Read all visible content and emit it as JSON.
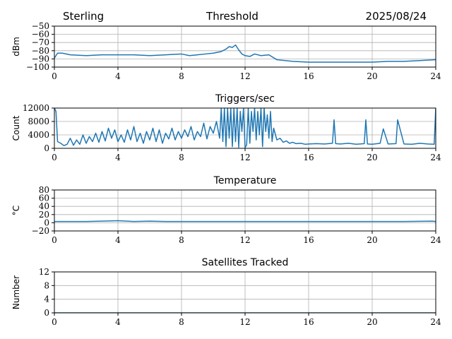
{
  "header": {
    "left": "Sterling",
    "center": "Threshold",
    "right": "2025/08/24"
  },
  "colors": {
    "line": "#1f77b4",
    "grid": "#b0b0b0",
    "axis": "#000000"
  },
  "chart_data": [
    {
      "type": "line",
      "title": "",
      "ylabel": "dBm",
      "xlabel": "",
      "xlim": [
        0,
        24
      ],
      "ylim": [
        -100,
        -50
      ],
      "xticks": [
        0,
        4,
        8,
        12,
        16,
        20,
        24
      ],
      "yticks": [
        -100,
        -90,
        -80,
        -70,
        -60,
        -50
      ],
      "ytick_labels": [
        "−100",
        "−90",
        "−80",
        "−70",
        "−60",
        "−50"
      ],
      "grid": true,
      "series": [
        {
          "x": [
            0,
            0.2,
            0.5,
            1,
            2,
            3,
            4,
            5,
            6,
            7,
            8,
            8.5,
            9,
            9.5,
            10,
            10.5,
            10.8,
            11,
            11.2,
            11.4,
            11.6,
            11.8,
            12,
            12.3,
            12.6,
            13,
            13.5,
            14,
            15,
            16,
            17,
            18,
            19,
            20,
            21,
            22,
            23,
            24
          ],
          "y": [
            -89,
            -83,
            -83,
            -85,
            -86,
            -85,
            -85,
            -85,
            -86,
            -85,
            -84,
            -86,
            -85,
            -84,
            -83,
            -81,
            -78,
            -75,
            -76,
            -73,
            -79,
            -84,
            -86,
            -87,
            -84,
            -86,
            -85,
            -91,
            -93,
            -94,
            -94,
            -94,
            -94,
            -94,
            -93,
            -93,
            -92,
            -91
          ]
        }
      ]
    },
    {
      "type": "line",
      "title": "Triggers/sec",
      "ylabel": "Count",
      "xlabel": "",
      "xlim": [
        0,
        24
      ],
      "ylim": [
        0,
        12000
      ],
      "xticks": [
        0,
        4,
        8,
        12,
        16,
        20,
        24
      ],
      "yticks": [
        0,
        4000,
        8000,
        12000
      ],
      "ytick_labels": [
        "0",
        "4000",
        "8000",
        "12000"
      ],
      "grid": true,
      "series": [
        {
          "x": [
            0,
            0.1,
            0.2,
            0.4,
            0.6,
            0.8,
            1.0,
            1.2,
            1.4,
            1.6,
            1.8,
            2.0,
            2.2,
            2.4,
            2.6,
            2.8,
            3.0,
            3.2,
            3.4,
            3.6,
            3.8,
            4.0,
            4.2,
            4.4,
            4.6,
            4.8,
            5.0,
            5.2,
            5.4,
            5.6,
            5.8,
            6.0,
            6.2,
            6.4,
            6.6,
            6.8,
            7.0,
            7.2,
            7.4,
            7.6,
            7.8,
            8.0,
            8.2,
            8.4,
            8.6,
            8.8,
            9.0,
            9.2,
            9.4,
            9.6,
            9.8,
            10.0,
            10.2,
            10.4,
            10.5,
            10.6,
            10.7,
            10.8,
            10.9,
            11.0,
            11.1,
            11.2,
            11.3,
            11.4,
            11.5,
            11.6,
            11.7,
            11.8,
            11.9,
            12.0,
            12.1,
            12.2,
            12.3,
            12.4,
            12.5,
            12.6,
            12.7,
            12.8,
            12.9,
            13.0,
            13.1,
            13.2,
            13.3,
            13.4,
            13.5,
            13.6,
            13.7,
            13.8,
            14.0,
            14.2,
            14.4,
            14.6,
            14.8,
            15.0,
            15.2,
            15.5,
            15.8,
            16.0,
            16.5,
            17.0,
            17.5,
            17.6,
            17.7,
            18.0,
            18.5,
            19.0,
            19.5,
            19.6,
            19.7,
            20.0,
            20.5,
            20.7,
            21.0,
            21.5,
            21.6,
            22.0,
            22.5,
            23.0,
            23.5,
            23.9,
            24.0
          ],
          "y": [
            12000,
            11000,
            2000,
            1500,
            800,
            1200,
            3000,
            900,
            2500,
            1200,
            4000,
            1500,
            3500,
            2000,
            4500,
            1800,
            5000,
            2200,
            6000,
            3000,
            5500,
            2000,
            4000,
            1800,
            5500,
            2500,
            6500,
            2000,
            4500,
            1500,
            5000,
            2500,
            6000,
            2000,
            5500,
            1500,
            4500,
            2800,
            6000,
            2500,
            5000,
            3000,
            5500,
            3500,
            6500,
            2500,
            5000,
            3500,
            7500,
            2800,
            6500,
            4500,
            8000,
            3000,
            12000,
            2000,
            12000,
            500,
            12000,
            3000,
            12000,
            500,
            12000,
            2000,
            12000,
            300,
            11000,
            5000,
            12000,
            200,
            1000,
            12000,
            1500,
            11000,
            5000,
            12000,
            2500,
            11000,
            4000,
            12000,
            500,
            12000,
            5000,
            10000,
            3000,
            11000,
            2000,
            6000,
            2500,
            3000,
            1800,
            2200,
            1500,
            1800,
            1400,
            1500,
            1200,
            1300,
            1400,
            1300,
            1500,
            8500,
            1400,
            1300,
            1500,
            1200,
            1400,
            8500,
            1300,
            1200,
            1500,
            5800,
            1300,
            1400,
            8500,
            1300,
            1200,
            1500,
            1300,
            1200,
            12000
          ]
        }
      ]
    },
    {
      "type": "line",
      "title": "Temperature",
      "ylabel": "°C",
      "xlabel": "",
      "xlim": [
        0,
        24
      ],
      "ylim": [
        -20,
        80
      ],
      "xticks": [
        0,
        4,
        8,
        12,
        16,
        20,
        24
      ],
      "yticks": [
        -20,
        0,
        20,
        40,
        60,
        80
      ],
      "ytick_labels": [
        "−20",
        "0",
        "20",
        "40",
        "60",
        "80"
      ],
      "grid": true,
      "series": [
        {
          "x": [
            0,
            2,
            3,
            4,
            5,
            6,
            7,
            8,
            10,
            12,
            14,
            16,
            18,
            20,
            22,
            23.8,
            24
          ],
          "y": [
            3,
            3,
            4,
            5,
            3,
            4,
            3,
            3,
            3,
            3,
            3,
            3,
            3,
            3,
            3,
            4,
            3
          ]
        }
      ]
    },
    {
      "type": "line",
      "title": "Satellites Tracked",
      "ylabel": "Number",
      "xlabel": "",
      "xlim": [
        0,
        24
      ],
      "ylim": [
        0,
        12
      ],
      "xticks": [
        0,
        4,
        8,
        12,
        16,
        20,
        24
      ],
      "yticks": [
        0,
        4,
        8,
        12
      ],
      "ytick_labels": [
        "0",
        "4",
        "8",
        "12"
      ],
      "grid": true,
      "series": [
        {
          "x": [
            0,
            24
          ],
          "y": [
            0,
            0
          ]
        }
      ]
    }
  ]
}
